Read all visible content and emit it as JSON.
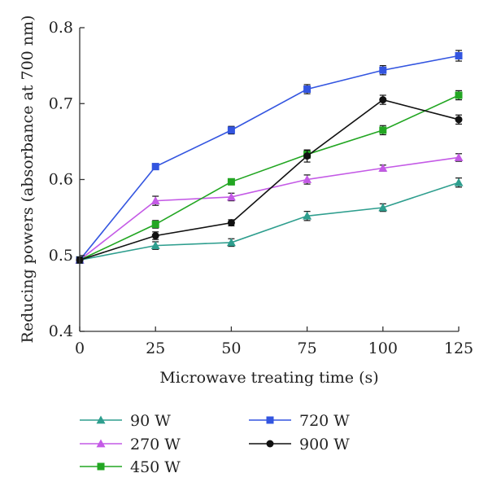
{
  "chart_data": {
    "type": "line",
    "xlabel": "Microwave treating time (s)",
    "ylabel": "Reducing powers (absorbance at 700 nm)",
    "xlim": [
      0,
      125
    ],
    "ylim": [
      0.4,
      0.8
    ],
    "x_ticks": [
      "0",
      "25",
      "50",
      "75",
      "100",
      "125"
    ],
    "y_ticks": [
      "0.4",
      "0.5",
      "0.6",
      "0.7",
      "0.8"
    ],
    "grid": false,
    "legend_position": "bottom",
    "x": [
      0,
      25,
      50,
      75,
      100,
      125
    ],
    "series": [
      {
        "name": "90 W",
        "color": "#2e9e8e",
        "marker": "triangle",
        "values": [
          0.494,
          0.513,
          0.517,
          0.552,
          0.563,
          0.596
        ],
        "errors": [
          0.004,
          0.005,
          0.005,
          0.006,
          0.005,
          0.006
        ]
      },
      {
        "name": "270 W",
        "color": "#c45ae6",
        "marker": "triangle",
        "values": [
          0.494,
          0.572,
          0.577,
          0.6,
          0.615,
          0.629
        ],
        "errors": [
          0.004,
          0.006,
          0.005,
          0.006,
          0.004,
          0.005
        ]
      },
      {
        "name": "450 W",
        "color": "#22a622",
        "marker": "square",
        "values": [
          0.494,
          0.541,
          0.597,
          0.633,
          0.665,
          0.711
        ],
        "errors": [
          0.004,
          0.005,
          0.004,
          0.005,
          0.006,
          0.006
        ]
      },
      {
        "name": "720 W",
        "color": "#3355e0",
        "marker": "square",
        "values": [
          0.494,
          0.617,
          0.665,
          0.719,
          0.744,
          0.763
        ],
        "errors": [
          0.004,
          0.004,
          0.005,
          0.006,
          0.006,
          0.007
        ]
      },
      {
        "name": "900 W",
        "color": "#111111",
        "marker": "circle",
        "values": [
          0.494,
          0.526,
          0.543,
          0.631,
          0.705,
          0.679
        ],
        "errors": [
          0.004,
          0.005,
          0.004,
          0.008,
          0.006,
          0.006
        ]
      }
    ]
  }
}
